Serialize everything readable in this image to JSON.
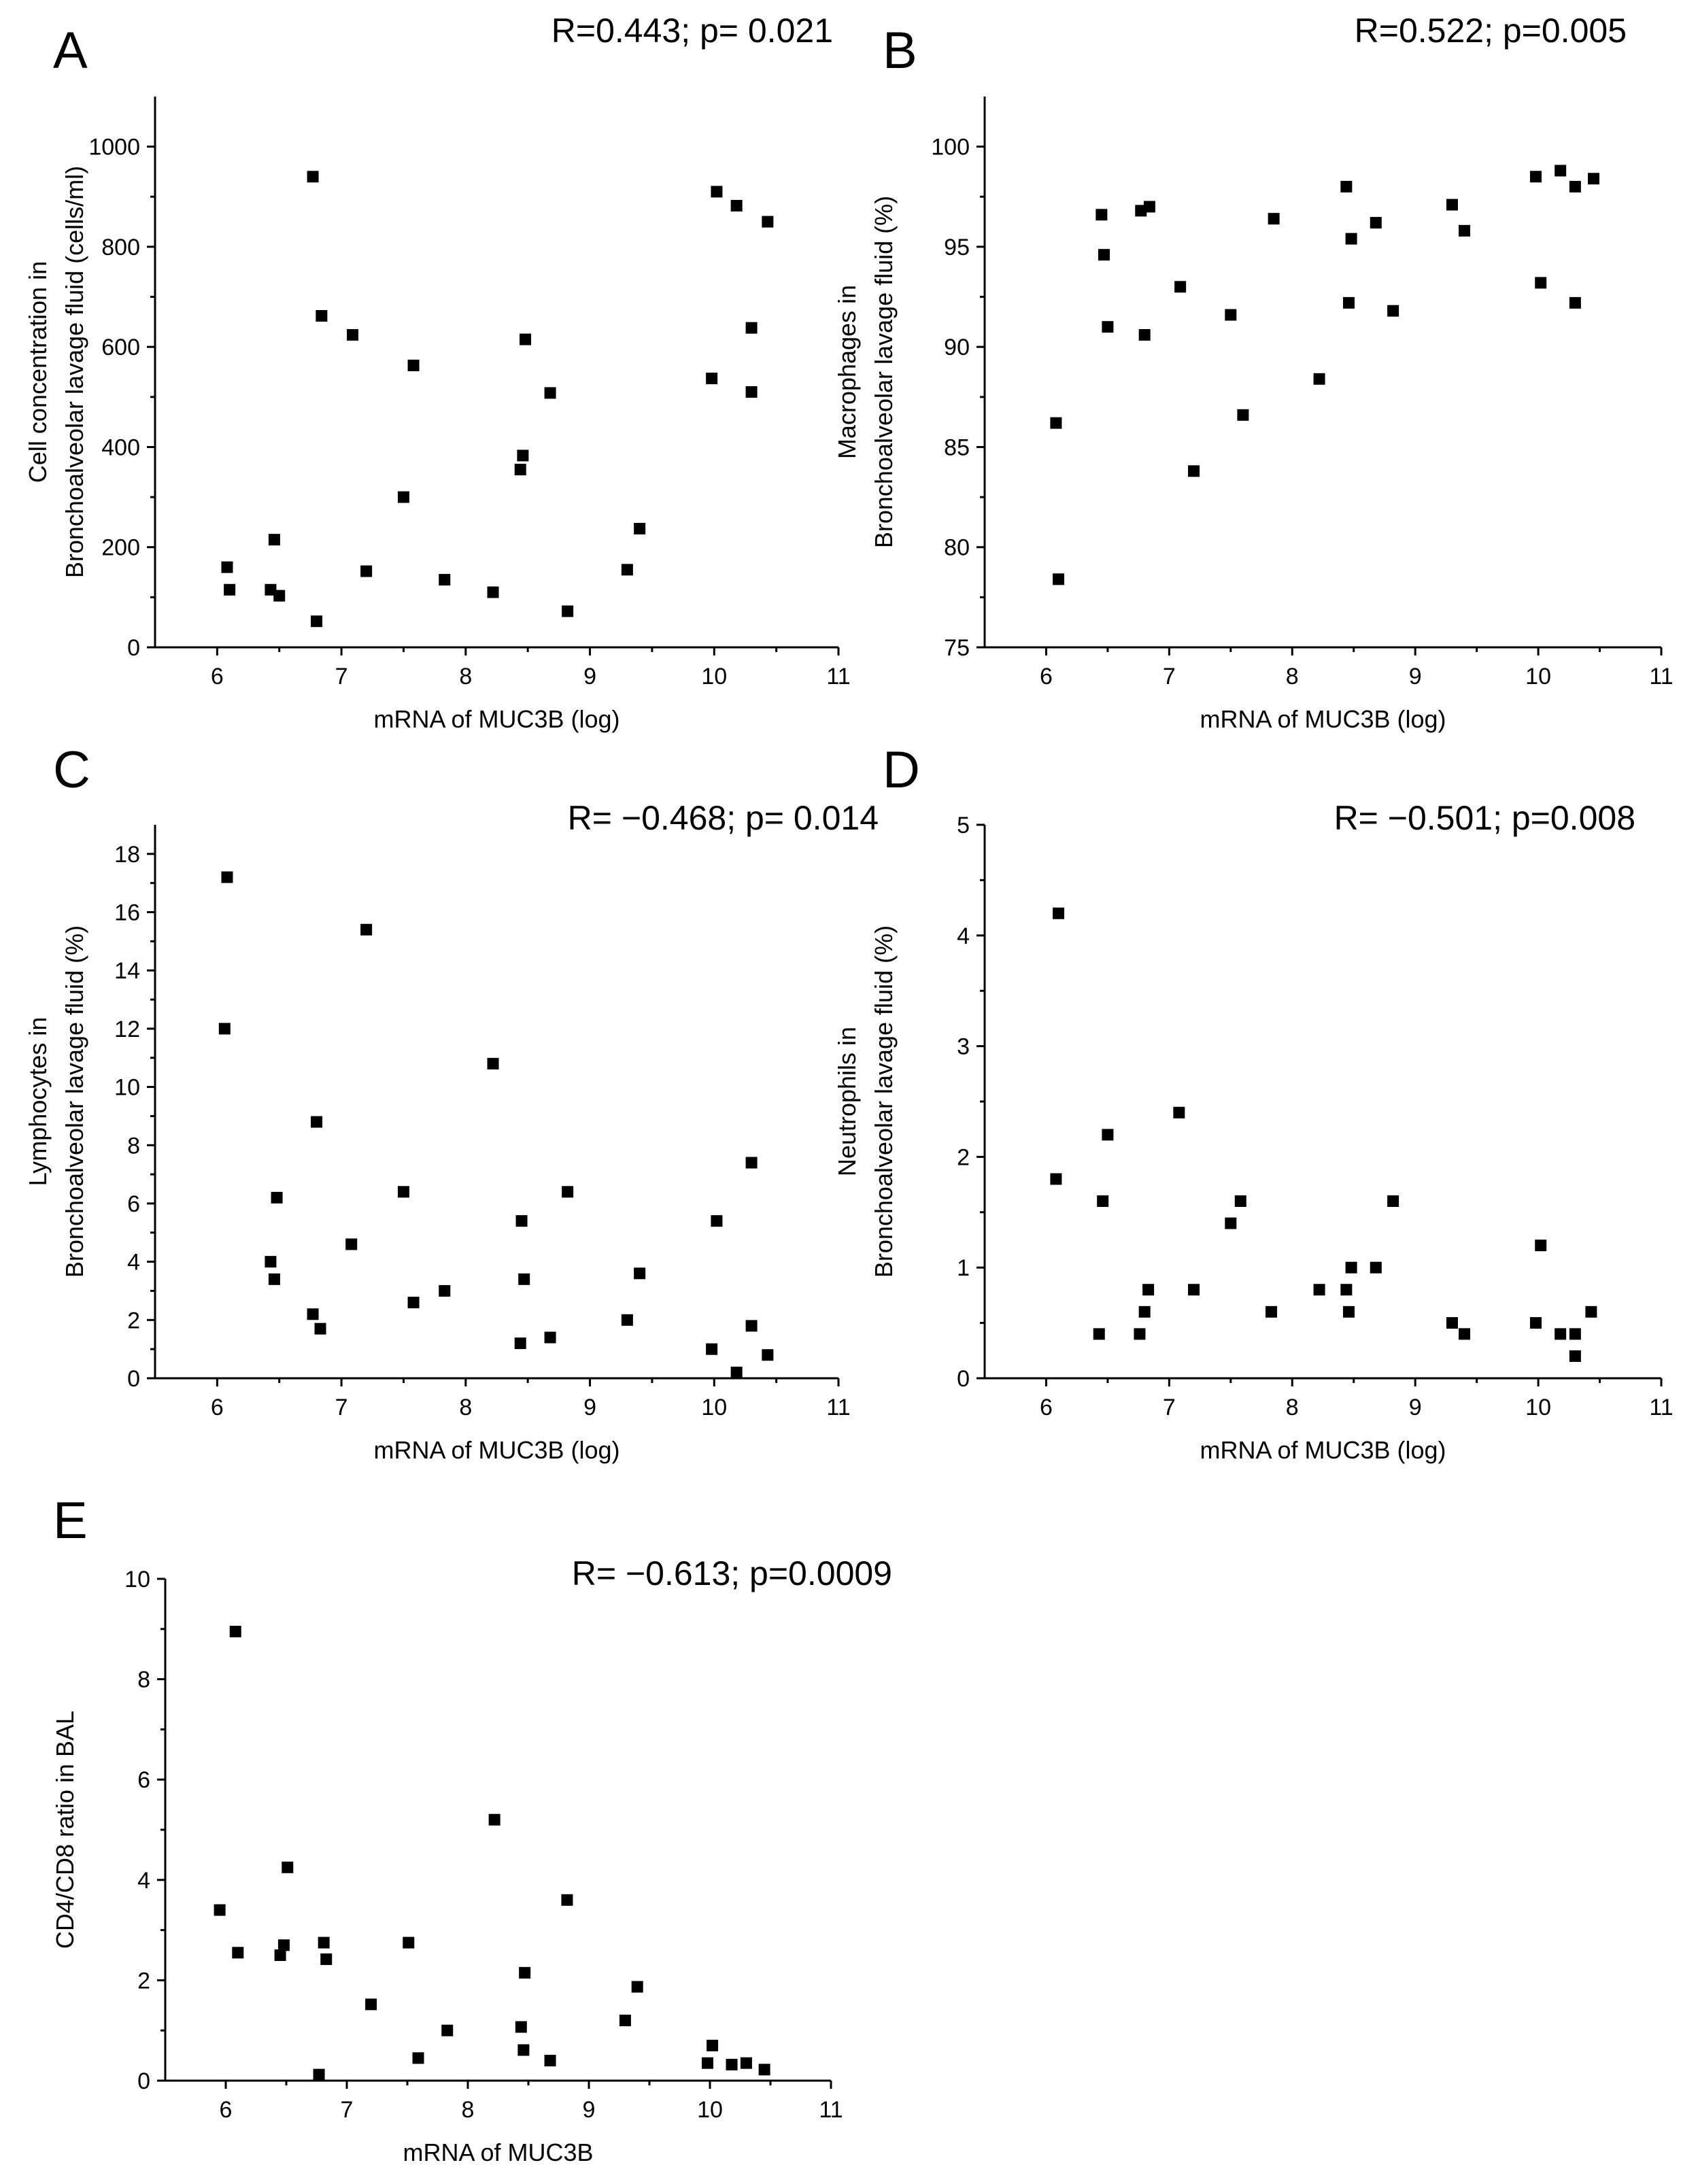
{
  "chart_data": [
    {
      "panel": "A",
      "type": "scatter",
      "annotation": "R=0.443; p= 0.021",
      "xlabel": "mRNA of MUC3B (log)",
      "ylabel_lines": [
        "Cell concentration in",
        "Bronchoalveolar lavage fluid (cells/ml)"
      ],
      "xlim": [
        5.5,
        11
      ],
      "ylim": [
        0,
        1100
      ],
      "xticks": [
        6,
        7,
        8,
        9,
        10,
        11
      ],
      "yticks": [
        0,
        200,
        400,
        600,
        800,
        1000
      ],
      "points": [
        [
          6.08,
          160
        ],
        [
          6.1,
          115
        ],
        [
          6.43,
          115
        ],
        [
          6.46,
          215
        ],
        [
          6.5,
          103
        ],
        [
          6.77,
          940
        ],
        [
          6.8,
          52
        ],
        [
          6.84,
          662
        ],
        [
          7.09,
          624
        ],
        [
          7.2,
          152
        ],
        [
          7.5,
          300
        ],
        [
          7.58,
          563
        ],
        [
          7.83,
          135
        ],
        [
          8.22,
          110
        ],
        [
          8.44,
          355
        ],
        [
          8.46,
          383
        ],
        [
          8.48,
          615
        ],
        [
          8.68,
          508
        ],
        [
          8.82,
          72
        ],
        [
          9.3,
          155
        ],
        [
          9.4,
          237
        ],
        [
          9.98,
          537
        ],
        [
          10.02,
          910
        ],
        [
          10.18,
          882
        ],
        [
          10.3,
          638
        ],
        [
          10.3,
          510
        ],
        [
          10.43,
          850
        ]
      ]
    },
    {
      "panel": "B",
      "type": "scatter",
      "annotation": "R=0.522; p=0.005",
      "xlabel": "mRNA of MUC3B (log)",
      "ylabel_lines": [
        "Macrophages in",
        "Bronchoalveolar lavage fluid (%)"
      ],
      "xlim": [
        5.5,
        11
      ],
      "ylim": [
        75,
        102.5
      ],
      "xticks": [
        6,
        7,
        8,
        9,
        10,
        11
      ],
      "yticks": [
        75,
        80,
        85,
        90,
        95,
        100
      ],
      "points": [
        [
          6.08,
          86.2
        ],
        [
          6.1,
          78.4
        ],
        [
          6.45,
          96.6
        ],
        [
          6.47,
          94.6
        ],
        [
          6.5,
          91.0
        ],
        [
          6.77,
          96.8
        ],
        [
          6.8,
          90.6
        ],
        [
          6.84,
          97.0
        ],
        [
          7.09,
          93.0
        ],
        [
          7.2,
          83.8
        ],
        [
          7.5,
          91.6
        ],
        [
          7.6,
          86.6
        ],
        [
          7.85,
          96.4
        ],
        [
          8.22,
          88.4
        ],
        [
          8.44,
          98.0
        ],
        [
          8.46,
          92.2
        ],
        [
          8.48,
          95.4
        ],
        [
          8.68,
          96.2
        ],
        [
          8.82,
          91.8
        ],
        [
          9.3,
          97.1
        ],
        [
          9.4,
          95.8
        ],
        [
          9.98,
          98.5
        ],
        [
          10.02,
          93.2
        ],
        [
          10.18,
          98.8
        ],
        [
          10.3,
          98.0
        ],
        [
          10.3,
          92.2
        ],
        [
          10.45,
          98.4
        ]
      ]
    },
    {
      "panel": "C",
      "type": "scatter",
      "annotation": "R= −0.468; p= 0.014",
      "xlabel": "mRNA of MUC3B (log)",
      "ylabel_lines": [
        "Lymphocytes in",
        "Bronchoalveolar lavage fluid (%)"
      ],
      "xlim": [
        5.5,
        11
      ],
      "ylim": [
        0,
        19
      ],
      "xticks": [
        6,
        7,
        8,
        9,
        10,
        11
      ],
      "yticks": [
        0,
        2,
        4,
        6,
        8,
        10,
        12,
        14,
        16,
        18
      ],
      "points": [
        [
          6.08,
          17.2
        ],
        [
          6.06,
          12.0
        ],
        [
          6.43,
          4.0
        ],
        [
          6.46,
          3.4
        ],
        [
          6.48,
          6.2
        ],
        [
          6.77,
          2.2
        ],
        [
          6.8,
          8.8
        ],
        [
          6.83,
          1.7
        ],
        [
          7.08,
          4.6
        ],
        [
          7.2,
          15.4
        ],
        [
          7.5,
          6.4
        ],
        [
          7.58,
          2.6
        ],
        [
          7.83,
          3.0
        ],
        [
          8.22,
          10.8
        ],
        [
          8.44,
          1.2
        ],
        [
          8.45,
          5.4
        ],
        [
          8.47,
          3.4
        ],
        [
          8.68,
          1.4
        ],
        [
          8.82,
          6.4
        ],
        [
          9.3,
          2.0
        ],
        [
          9.4,
          3.6
        ],
        [
          9.98,
          1.0
        ],
        [
          10.02,
          5.4
        ],
        [
          10.18,
          0.2
        ],
        [
          10.3,
          7.4
        ],
        [
          10.3,
          1.8
        ],
        [
          10.43,
          0.8
        ]
      ]
    },
    {
      "panel": "D",
      "type": "scatter",
      "annotation": "R= −0.501; p=0.008",
      "xlabel": "mRNA of MUC3B (log)",
      "ylabel_lines": [
        "Neutrophils in",
        "Bronchoalveolar lavage fluid (%)"
      ],
      "xlim": [
        5.5,
        11
      ],
      "ylim": [
        0,
        5
      ],
      "xticks": [
        6,
        7,
        8,
        9,
        10,
        11
      ],
      "yticks": [
        0,
        1,
        2,
        3,
        4,
        5
      ],
      "points": [
        [
          6.08,
          1.8
        ],
        [
          6.1,
          4.2
        ],
        [
          6.43,
          0.4
        ],
        [
          6.46,
          1.6
        ],
        [
          6.5,
          2.2
        ],
        [
          6.76,
          0.4
        ],
        [
          6.8,
          0.6
        ],
        [
          6.83,
          0.8
        ],
        [
          7.08,
          2.4
        ],
        [
          7.2,
          0.8
        ],
        [
          7.5,
          1.4
        ],
        [
          7.58,
          1.6
        ],
        [
          7.83,
          0.6
        ],
        [
          8.22,
          0.8
        ],
        [
          8.44,
          0.8
        ],
        [
          8.46,
          0.6
        ],
        [
          8.48,
          1.0
        ],
        [
          8.68,
          1.0
        ],
        [
          8.82,
          1.6
        ],
        [
          9.3,
          0.5
        ],
        [
          9.4,
          0.4
        ],
        [
          9.98,
          0.5
        ],
        [
          10.02,
          1.2
        ],
        [
          10.18,
          0.4
        ],
        [
          10.3,
          0.4
        ],
        [
          10.3,
          0.2
        ],
        [
          10.43,
          0.6
        ]
      ]
    },
    {
      "panel": "E",
      "type": "scatter",
      "annotation": "R= −0.613; p=0.0009",
      "xlabel": "mRNA of MUC3B",
      "ylabel_lines": [
        "CD4/CD8 ratio in BAL"
      ],
      "xlim": [
        5.5,
        11
      ],
      "ylim": [
        0,
        10
      ],
      "xticks": [
        6,
        7,
        8,
        9,
        10,
        11
      ],
      "yticks": [
        0,
        2,
        4,
        6,
        8,
        10
      ],
      "points": [
        [
          5.95,
          3.4
        ],
        [
          6.08,
          8.95
        ],
        [
          6.1,
          2.55
        ],
        [
          6.45,
          2.5
        ],
        [
          6.48,
          2.7
        ],
        [
          6.51,
          4.25
        ],
        [
          6.77,
          0.12
        ],
        [
          6.81,
          2.75
        ],
        [
          6.83,
          2.42
        ],
        [
          7.2,
          1.52
        ],
        [
          7.51,
          2.75
        ],
        [
          7.59,
          0.45
        ],
        [
          7.83,
          1.0
        ],
        [
          8.22,
          5.2
        ],
        [
          8.44,
          1.07
        ],
        [
          8.46,
          0.61
        ],
        [
          8.47,
          2.15
        ],
        [
          8.68,
          0.4
        ],
        [
          8.82,
          3.6
        ],
        [
          9.3,
          1.2
        ],
        [
          9.4,
          1.87
        ],
        [
          9.98,
          0.35
        ],
        [
          10.02,
          0.7
        ],
        [
          10.18,
          0.32
        ],
        [
          10.3,
          0.35
        ],
        [
          10.45,
          0.22
        ]
      ]
    }
  ]
}
